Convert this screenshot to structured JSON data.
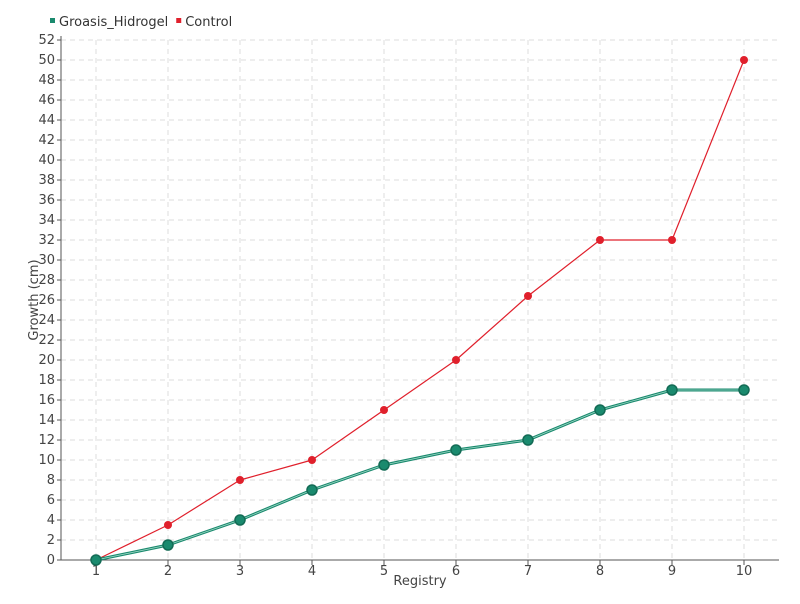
{
  "chart_data": {
    "type": "line",
    "xlabel": "Registry",
    "ylabel": "Growth (cm)",
    "x": [
      1,
      2,
      3,
      4,
      5,
      6,
      7,
      8,
      9,
      10
    ],
    "ylim": [
      0,
      52
    ],
    "ytick_step": 2,
    "grid": true,
    "legend_position": "top-left",
    "series": [
      {
        "name": "Groasis_Hidrogel",
        "color": "#1a8a6e",
        "values": [
          0,
          1.5,
          4,
          7,
          9.5,
          11,
          12,
          15,
          17,
          17
        ]
      },
      {
        "name": "Control",
        "color": "#e0202c",
        "values": [
          0,
          3.5,
          8,
          10,
          15,
          20,
          26.4,
          32,
          32,
          50
        ]
      }
    ]
  }
}
